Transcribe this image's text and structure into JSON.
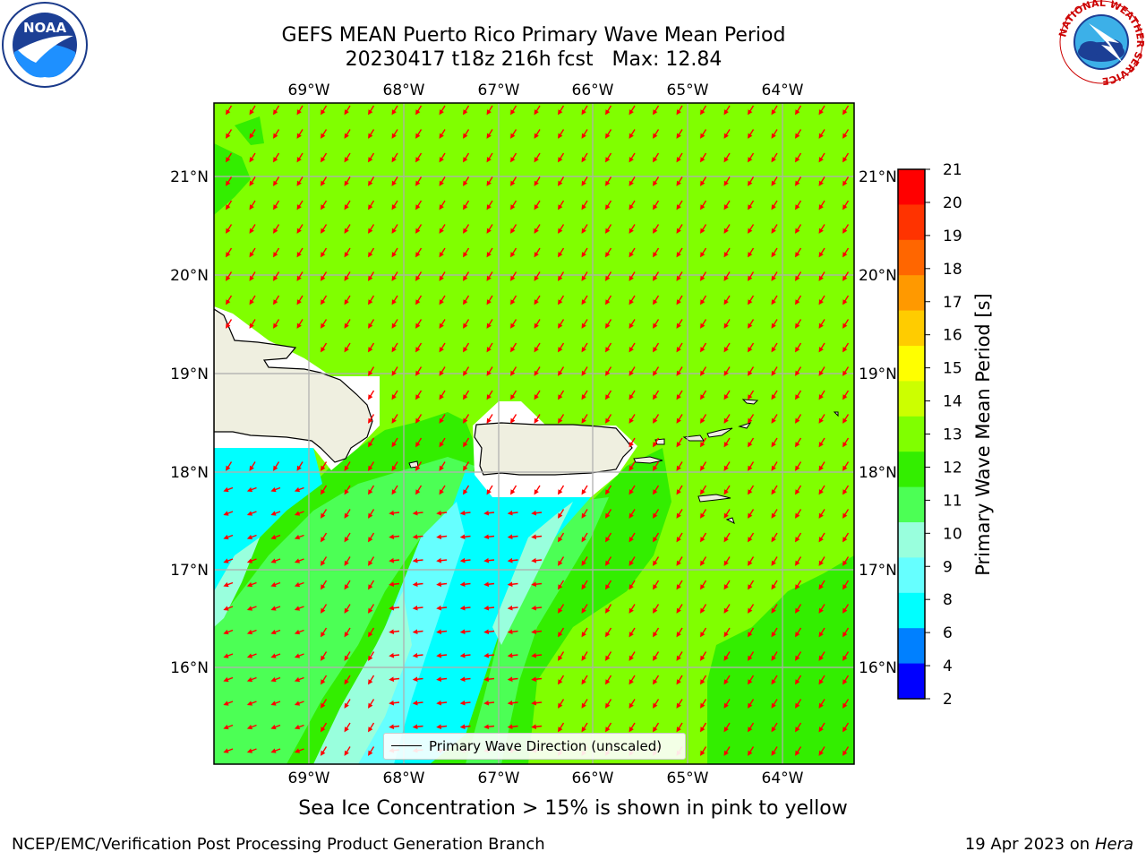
{
  "header": {
    "title_line1": "GEFS MEAN Puerto Rico Primary Wave Mean Period",
    "title_line2": "20230417 t18z 216h fcst   Max: 12.84"
  },
  "logos": {
    "noaa": "NOAA",
    "nws_ring": "NATIONAL WEATHER SERVICE"
  },
  "map": {
    "lon_labels": [
      "69°W",
      "68°W",
      "67°W",
      "66°W",
      "65°W",
      "64°W"
    ],
    "lat_labels": [
      "21°N",
      "20°N",
      "19°N",
      "18°N",
      "17°N",
      "16°N"
    ],
    "legend": "Primary Wave Direction (unscaled)",
    "colors": {
      "ocean_main": "#80ff00",
      "green": "#33ee00",
      "mid_green": "#4cff55",
      "cyan": "#00ffff",
      "light_cyan": "#66ffff",
      "pale": "#99ffdd",
      "land": "#efefe0",
      "arrow": "#ff0000"
    }
  },
  "colorbar": {
    "label": "Primary Wave Mean Period [s]",
    "ticks": [
      "21",
      "20",
      "19",
      "18",
      "17",
      "16",
      "15",
      "14",
      "13",
      "12",
      "11",
      "10",
      "9",
      "8",
      "6",
      "4",
      "2"
    ],
    "colors": [
      "#ff0000",
      "#ff3300",
      "#ff6600",
      "#ff9900",
      "#ffcc00",
      "#ffff00",
      "#ccff00",
      "#80ff00",
      "#33ee00",
      "#4cff55",
      "#99ffdd",
      "#66ffff",
      "#00ffff",
      "#0080ff",
      "#0000ff"
    ]
  },
  "note": "Sea Ice Concentration > 15% is shown in pink to yellow",
  "footer": {
    "left": "NCEP/EMC/Verification Post Processing Product Generation Branch",
    "right_prefix": "19 Apr 2023 on ",
    "right_host": "Hera"
  }
}
